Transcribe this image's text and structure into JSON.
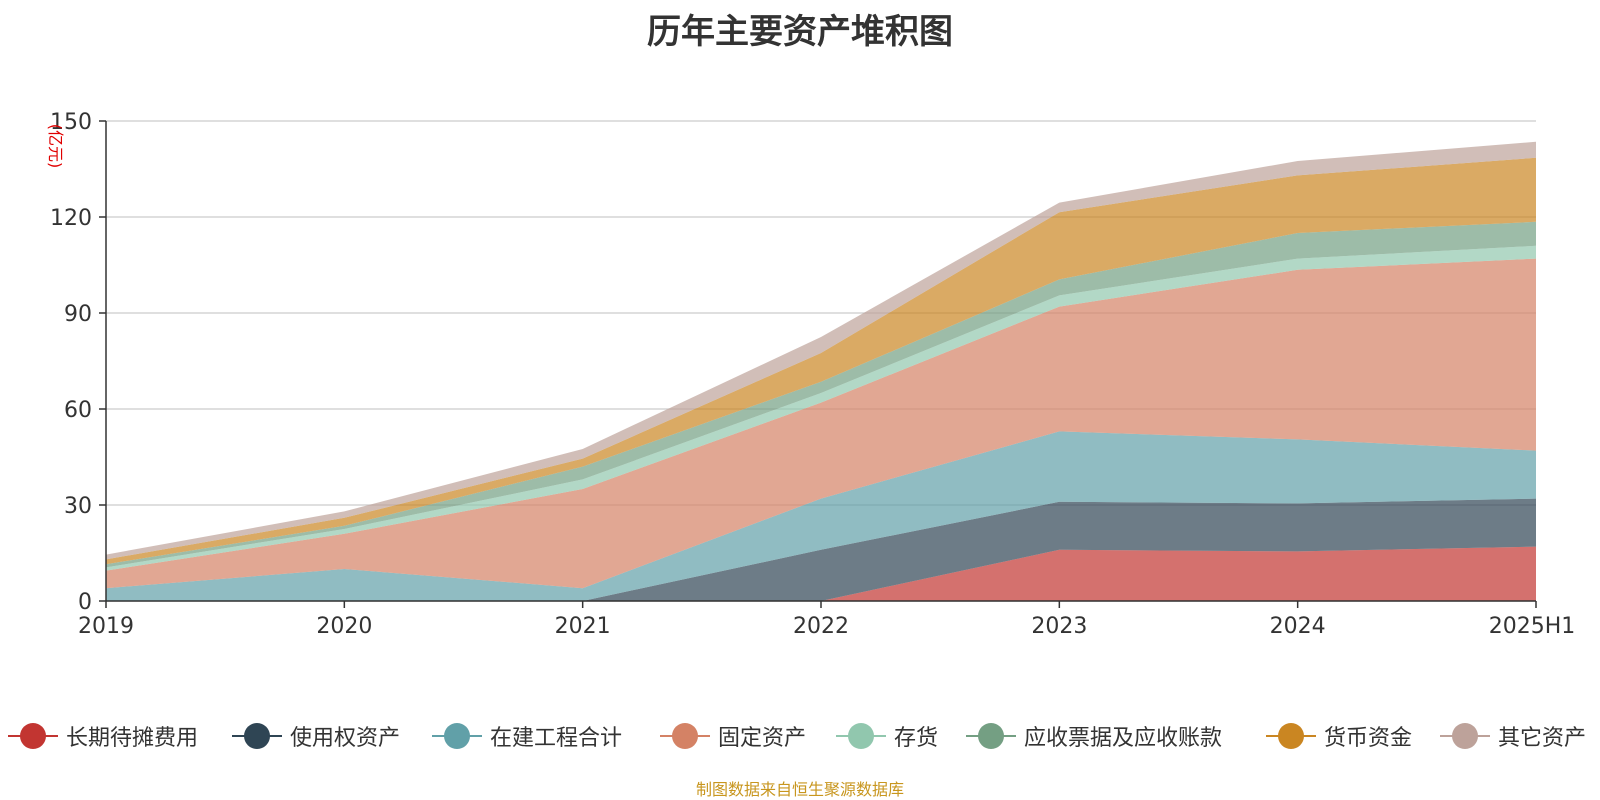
{
  "page": {
    "title": "历年主要资产堆积图",
    "source": "制图数据来自恒生聚源数据库"
  },
  "chart_data": {
    "type": "area",
    "stacked": true,
    "title": "历年主要资产堆积图",
    "ylabel": "(亿元)",
    "xlabel": "",
    "categories": [
      "2019",
      "2020",
      "2021",
      "2022",
      "2023",
      "2024",
      "2025H1"
    ],
    "ylim": [
      0,
      150
    ],
    "yticks": [
      0,
      30,
      60,
      90,
      120,
      150
    ],
    "grid": true,
    "legend_position": "bottom",
    "series": [
      {
        "name": "长期待摊费用",
        "color": "#c23531",
        "values": [
          0,
          0,
          0,
          0,
          16,
          15.5,
          17
        ]
      },
      {
        "name": "使用权资产",
        "color": "#2f4554",
        "values": [
          0,
          0,
          0,
          16,
          15,
          15,
          15
        ]
      },
      {
        "name": "在建工程合计",
        "color": "#61a0a8",
        "values": [
          4,
          10,
          4,
          16,
          22,
          20,
          15
        ]
      },
      {
        "name": "固定资产",
        "color": "#d48265",
        "values": [
          5.5,
          11,
          31,
          30,
          39,
          53,
          60
        ]
      },
      {
        "name": "存货",
        "color": "#91c7ae",
        "values": [
          1,
          1.5,
          3,
          3,
          3.5,
          3.5,
          4
        ]
      },
      {
        "name": "应收票据及应收账款",
        "color": "#749f83",
        "values": [
          1,
          1,
          4,
          3.5,
          5,
          8,
          7.5
        ]
      },
      {
        "name": "货币资金",
        "color": "#ca8622",
        "values": [
          1.5,
          2.5,
          2.5,
          9,
          21,
          18,
          20
        ]
      },
      {
        "name": "其它资产",
        "color": "#bda29a",
        "values": [
          1.5,
          2,
          3,
          5,
          3,
          4.5,
          5
        ]
      }
    ]
  }
}
